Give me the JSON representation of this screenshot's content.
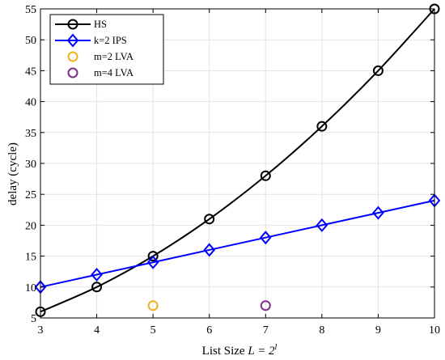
{
  "chart_data": {
    "type": "line",
    "title": "",
    "xlabel_prefix": "List Size ",
    "xlabel_math": "L = 2",
    "xlabel_sup": "l",
    "ylabel": "delay (cycle)",
    "xlim": [
      3,
      10
    ],
    "ylim": [
      5,
      55
    ],
    "xticks": [
      3,
      4,
      5,
      6,
      7,
      8,
      9,
      10
    ],
    "yticks": [
      5,
      10,
      15,
      20,
      25,
      30,
      35,
      40,
      45,
      50,
      55
    ],
    "grid": true,
    "legend_position": "top-left",
    "series": [
      {
        "name": "HS",
        "color": "#000000",
        "marker": "circle",
        "line": true,
        "x": [
          3,
          4,
          5,
          6,
          7,
          8,
          9,
          10
        ],
        "y": [
          6,
          10,
          15,
          21,
          28,
          36,
          45,
          55
        ]
      },
      {
        "name": "k=2 IPS",
        "color": "#0000ff",
        "marker": "diamond",
        "line": true,
        "x": [
          3,
          4,
          5,
          6,
          7,
          8,
          9,
          10
        ],
        "y": [
          10,
          12,
          14,
          16,
          18,
          20,
          22,
          24
        ]
      },
      {
        "name": "m=2 LVA",
        "color": "#edb120",
        "marker": "circle",
        "line": false,
        "x": [
          5
        ],
        "y": [
          7
        ]
      },
      {
        "name": "m=4 LVA",
        "color": "#7e2f8e",
        "marker": "circle",
        "line": false,
        "x": [
          7
        ],
        "y": [
          7
        ]
      }
    ]
  }
}
